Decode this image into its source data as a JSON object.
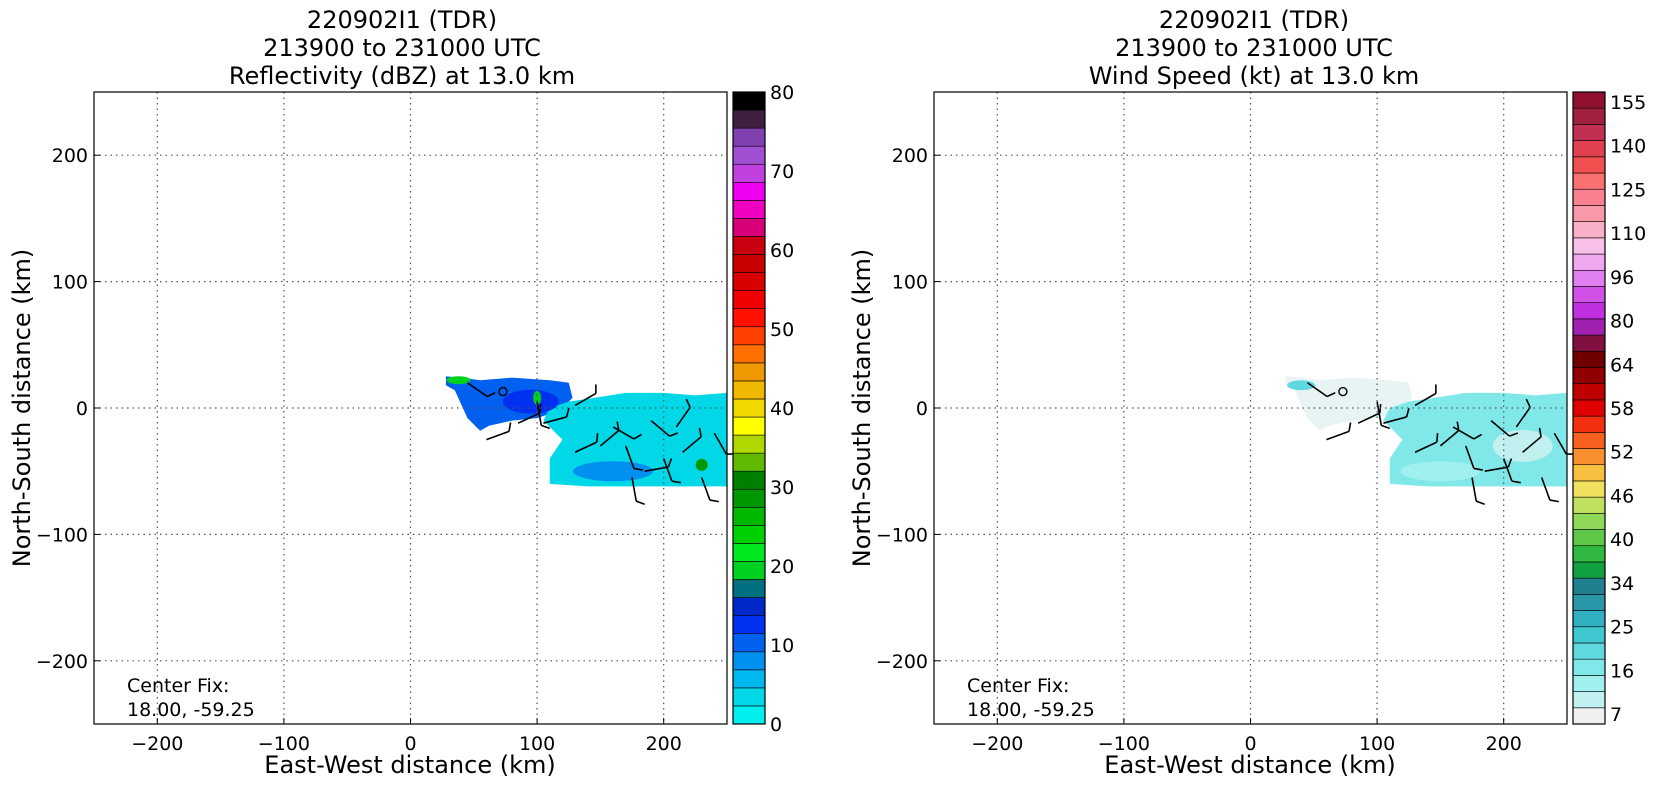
{
  "panels": [
    {
      "title_lines": [
        "220902I1 (TDR)",
        "213900 to 231000 UTC",
        "Reflectivity (dBZ) at 13.0 km"
      ],
      "xlabel": "East-West distance (km)",
      "ylabel": "North-South distance (km)",
      "xticks": [
        "−200",
        "−100",
        "0",
        "100",
        "200"
      ],
      "yticks": [
        "−200",
        "−100",
        "0",
        "100",
        "200"
      ],
      "annotation_lines": [
        "Center Fix:",
        "18.00, -59.25"
      ],
      "colorbar": {
        "ticks": [
          "0",
          "10",
          "20",
          "30",
          "40",
          "50",
          "60",
          "70",
          "80"
        ],
        "colors": [
          "#00f0f0",
          "#00d8e8",
          "#00b8f0",
          "#0090f0",
          "#0060f0",
          "#0030f0",
          "#0028c8",
          "#007080",
          "#00d020",
          "#00e820",
          "#00d000",
          "#00b800",
          "#009800",
          "#008000",
          "#60b800",
          "#b0d800",
          "#ffff00",
          "#f0d800",
          "#f0b800",
          "#f09800",
          "#ff7000",
          "#ff4000",
          "#ff1000",
          "#f00000",
          "#d80000",
          "#c80000",
          "#c80010",
          "#d80078",
          "#f000c0",
          "#f000f0",
          "#c040e0",
          "#a050d0",
          "#8040b0",
          "#402040",
          "#000000"
        ]
      }
    },
    {
      "title_lines": [
        "220902I1 (TDR)",
        "213900 to 231000 UTC",
        "Wind Speed (kt) at 13.0 km"
      ],
      "xlabel": "East-West distance (km)",
      "ylabel": "North-South distance (km)",
      "xticks": [
        "−200",
        "−100",
        "0",
        "100",
        "200"
      ],
      "yticks": [
        "−200",
        "−100",
        "0",
        "100",
        "200"
      ],
      "annotation_lines": [
        "Center Fix:",
        "18.00, -59.25"
      ],
      "colorbar": {
        "ticks": [
          "7",
          "16",
          "25",
          "34",
          "40",
          "46",
          "52",
          "58",
          "64",
          "80",
          "96",
          "110",
          "125",
          "140",
          "155"
        ],
        "colors": [
          "#f0f0f0",
          "#c0f0f0",
          "#a0f0f0",
          "#80e8e8",
          "#60d8e0",
          "#40c8d0",
          "#30b0c0",
          "#2898a8",
          "#208090",
          "#10a040",
          "#30b840",
          "#60c848",
          "#90d858",
          "#c0e060",
          "#f0e060",
          "#f8c040",
          "#f89030",
          "#f86020",
          "#f03010",
          "#e00000",
          "#c00000",
          "#900000",
          "#700000",
          "#801040",
          "#a020b0",
          "#c030e0",
          "#d050e8",
          "#e080f0",
          "#f0a8f0",
          "#f8c0e8",
          "#f8b0c8",
          "#f898a8",
          "#f88090",
          "#f87070",
          "#f05050",
          "#e04050",
          "#c03050",
          "#a02040",
          "#901030"
        ]
      }
    }
  ],
  "chart_data": [
    {
      "type": "heatmap",
      "title": "220902I1 (TDR) 213900 to 231000 UTC Reflectivity (dBZ) at 13.0 km",
      "xlabel": "East-West distance (km)",
      "ylabel": "North-South distance (km)",
      "xlim": [
        -250,
        250
      ],
      "ylim": [
        -250,
        250
      ],
      "grid": true,
      "colorbar_label": "dBZ",
      "colorbar_range": [
        0,
        80
      ],
      "regions": [
        {
          "x_range": [
            28,
            125
          ],
          "y_range": [
            -25,
            25
          ],
          "typical_value": 12
        },
        {
          "x_range": [
            110,
            250
          ],
          "y_range": [
            -62,
            12
          ],
          "typical_value": 4
        }
      ],
      "center_fix": {
        "lat": 18.0,
        "lon": -59.25
      }
    },
    {
      "type": "heatmap",
      "title": "220902I1 (TDR) 213900 to 231000 UTC Wind Speed (kt) at 13.0 km",
      "xlabel": "East-West distance (km)",
      "ylabel": "North-South distance (km)",
      "xlim": [
        -250,
        250
      ],
      "ylim": [
        -250,
        250
      ],
      "grid": true,
      "colorbar_label": "kt",
      "colorbar_range": [
        7,
        160
      ],
      "regions": [
        {
          "x_range": [
            28,
            125
          ],
          "y_range": [
            -25,
            25
          ],
          "typical_value": 12
        },
        {
          "x_range": [
            110,
            250
          ],
          "y_range": [
            -62,
            12
          ],
          "typical_value": 16
        }
      ],
      "center_fix": {
        "lat": 18.0,
        "lon": -59.25
      }
    }
  ]
}
